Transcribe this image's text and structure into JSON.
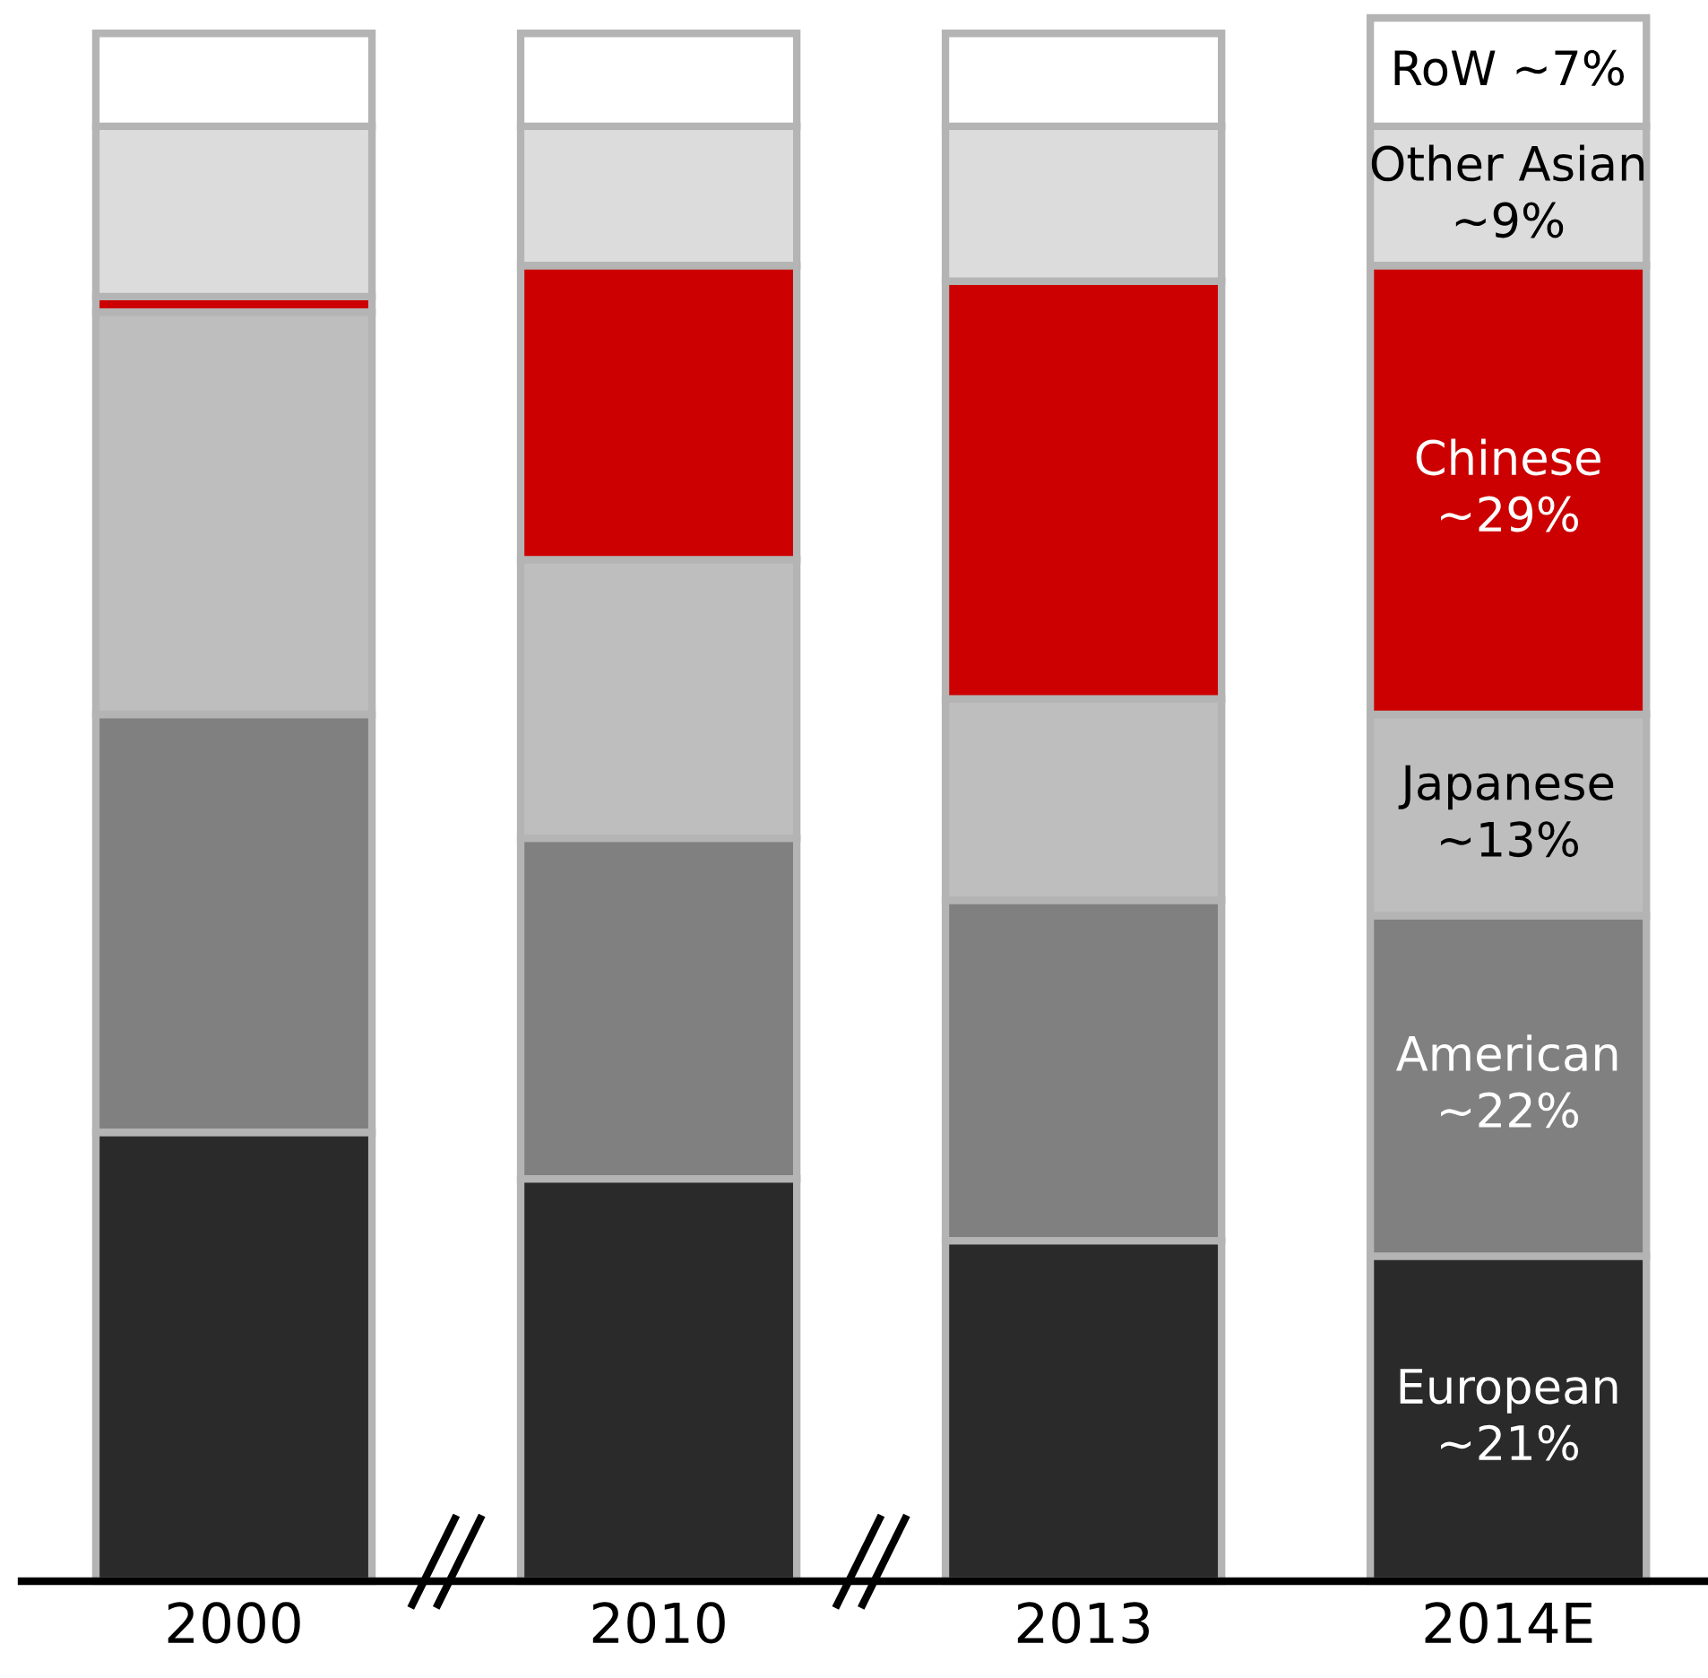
{
  "chart_data": {
    "type": "bar",
    "stacked": true,
    "tick_labels": "x",
    "categories": [
      "2000",
      "2010",
      "2013",
      "2014E"
    ],
    "series": [
      {
        "name": "European",
        "color": "#2a2a2a",
        "values": [
          29,
          26,
          22,
          21
        ],
        "value_labels": [
          null,
          null,
          null,
          "~21%"
        ]
      },
      {
        "name": "American",
        "color": "#808080",
        "values": [
          27,
          22,
          22,
          22
        ],
        "value_labels": [
          null,
          null,
          null,
          "~22%"
        ]
      },
      {
        "name": "Japanese",
        "color": "#bebebe",
        "values": [
          26,
          18,
          13,
          13
        ],
        "value_labels": [
          null,
          null,
          null,
          "~13%"
        ]
      },
      {
        "name": "Chinese",
        "color": "#cc0000",
        "values": [
          1,
          19,
          27,
          29
        ],
        "value_labels": [
          null,
          null,
          null,
          "~29%"
        ]
      },
      {
        "name": "Other Asian",
        "color": "#dcdcdc",
        "values": [
          11,
          9,
          10,
          9
        ],
        "value_labels": [
          null,
          null,
          null,
          "~9%"
        ]
      },
      {
        "name": "RoW",
        "color": "#ffffff",
        "values": [
          6,
          6,
          6,
          7
        ],
        "value_labels": [
          null,
          null,
          null,
          "~7%"
        ]
      }
    ],
    "grid": false
  }
}
